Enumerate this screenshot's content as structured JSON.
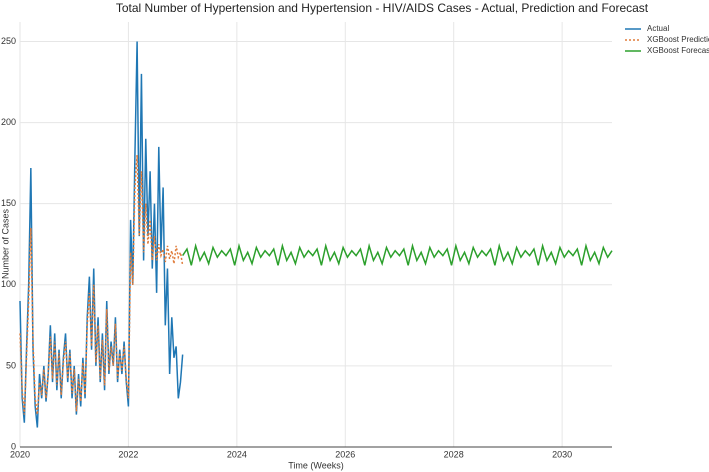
{
  "chart_data": {
    "type": "line",
    "title": "Total Number of Hypertension and Hypertension - HIV/AIDS Cases - Actual, Prediction and Forecast",
    "x_label": "Time (Weeks)",
    "y_label": "Number of Cases",
    "xlim": [
      2020,
      2030.92
    ],
    "xticks": [
      2020,
      2022,
      2024,
      2026,
      2028,
      2030
    ],
    "ylim": [
      0,
      262
    ],
    "yticks": [
      0,
      50,
      100,
      150,
      200,
      250
    ],
    "grid": true,
    "legend": "upper-right",
    "series": [
      {
        "name": "Actual",
        "color": "#1f77b4",
        "dash": false,
        "x": [
          2020,
          2020.04,
          2020.08,
          2020.12,
          2020.16,
          2020.2,
          2020.24,
          2020.28,
          2020.32,
          2020.36,
          2020.4,
          2020.44,
          2020.48,
          2020.52,
          2020.56,
          2020.6,
          2020.64,
          2020.68,
          2020.72,
          2020.76,
          2020.8,
          2020.84,
          2020.88,
          2020.92,
          2020.96,
          2021,
          2021.04,
          2021.08,
          2021.12,
          2021.16,
          2021.2,
          2021.24,
          2021.28,
          2021.32,
          2021.36,
          2021.4,
          2021.44,
          2021.48,
          2021.52,
          2021.56,
          2021.6,
          2021.64,
          2021.68,
          2021.72,
          2021.76,
          2021.8,
          2021.84,
          2021.88,
          2021.92,
          2021.96,
          2022,
          2022.04,
          2022.08,
          2022.12,
          2022.16,
          2022.2,
          2022.24,
          2022.28,
          2022.32,
          2022.36,
          2022.4,
          2022.44,
          2022.48,
          2022.52,
          2022.56,
          2022.6,
          2022.64,
          2022.68,
          2022.72,
          2022.76,
          2022.8,
          2022.84,
          2022.88,
          2022.92,
          2022.96,
          2023
        ],
        "values": [
          90,
          30,
          15,
          60,
          100,
          172,
          60,
          25,
          12,
          45,
          30,
          50,
          28,
          45,
          75,
          40,
          70,
          35,
          60,
          30,
          55,
          70,
          40,
          60,
          30,
          50,
          20,
          45,
          25,
          55,
          30,
          80,
          105,
          60,
          110,
          50,
          80,
          40,
          70,
          35,
          90,
          45,
          65,
          50,
          80,
          40,
          60,
          45,
          65,
          40,
          25,
          140,
          100,
          180,
          250,
          130,
          230,
          115,
          190,
          130,
          170,
          110,
          150,
          95,
          185,
          120,
          160,
          75,
          110,
          45,
          80,
          55,
          62,
          30,
          40,
          57
        ]
      },
      {
        "name": "XGBoost Prediction",
        "color": "#e07b39",
        "dash": true,
        "x": [
          2020,
          2020.04,
          2020.08,
          2020.12,
          2020.16,
          2020.2,
          2020.24,
          2020.28,
          2020.32,
          2020.36,
          2020.4,
          2020.44,
          2020.48,
          2020.52,
          2020.56,
          2020.6,
          2020.64,
          2020.68,
          2020.72,
          2020.76,
          2020.8,
          2020.84,
          2020.88,
          2020.92,
          2020.96,
          2021,
          2021.04,
          2021.08,
          2021.12,
          2021.16,
          2021.2,
          2021.24,
          2021.28,
          2021.32,
          2021.36,
          2021.4,
          2021.44,
          2021.48,
          2021.52,
          2021.56,
          2021.6,
          2021.64,
          2021.68,
          2021.72,
          2021.76,
          2021.8,
          2021.84,
          2021.88,
          2021.92,
          2021.96,
          2022,
          2022.04,
          2022.08,
          2022.12,
          2022.16,
          2022.2,
          2022.24,
          2022.28,
          2022.32,
          2022.36,
          2022.4,
          2022.44,
          2022.48,
          2022.52,
          2022.56,
          2022.6,
          2022.64,
          2022.68,
          2022.72,
          2022.76,
          2022.8,
          2022.84,
          2022.88,
          2022.92,
          2022.96,
          2023
        ],
        "values": [
          70,
          35,
          20,
          55,
          90,
          135,
          65,
          30,
          20,
          40,
          32,
          48,
          30,
          45,
          68,
          42,
          65,
          38,
          58,
          32,
          52,
          65,
          42,
          58,
          33,
          48,
          22,
          42,
          28,
          52,
          32,
          75,
          95,
          62,
          100,
          52,
          75,
          42,
          66,
          38,
          85,
          47,
          62,
          50,
          76,
          42,
          58,
          47,
          62,
          42,
          30,
          120,
          100,
          160,
          180,
          130,
          170,
          120,
          150,
          125,
          140,
          115,
          130,
          115,
          125,
          118,
          122,
          114,
          124,
          116,
          121,
          113,
          124,
          117,
          120,
          112
        ]
      },
      {
        "name": "XGBoost Forecast",
        "color": "#2ca02c",
        "dash": false,
        "x": [
          2023,
          2023.08,
          2023.16,
          2023.24,
          2023.32,
          2023.4,
          2023.48,
          2023.56,
          2023.64,
          2023.72,
          2023.8,
          2023.88,
          2023.96,
          2024.04,
          2024.12,
          2024.2,
          2024.28,
          2024.36,
          2024.44,
          2024.52,
          2024.6,
          2024.68,
          2024.76,
          2024.84,
          2024.92,
          2025,
          2025.08,
          2025.16,
          2025.24,
          2025.32,
          2025.4,
          2025.48,
          2025.56,
          2025.64,
          2025.72,
          2025.8,
          2025.88,
          2025.96,
          2026.04,
          2026.12,
          2026.2,
          2026.28,
          2026.36,
          2026.44,
          2026.52,
          2026.6,
          2026.68,
          2026.76,
          2026.84,
          2026.92,
          2027,
          2027.08,
          2027.16,
          2027.24,
          2027.32,
          2027.4,
          2027.48,
          2027.56,
          2027.64,
          2027.72,
          2027.8,
          2027.88,
          2027.96,
          2028.04,
          2028.12,
          2028.2,
          2028.28,
          2028.36,
          2028.44,
          2028.52,
          2028.6,
          2028.68,
          2028.76,
          2028.84,
          2028.92,
          2029,
          2029.08,
          2029.16,
          2029.24,
          2029.32,
          2029.4,
          2029.48,
          2029.56,
          2029.64,
          2029.72,
          2029.8,
          2029.88,
          2029.96,
          2030.04,
          2030.12,
          2030.2,
          2030.28,
          2030.36,
          2030.44,
          2030.52,
          2030.6,
          2030.68,
          2030.76,
          2030.84,
          2030.92
        ],
        "values": [
          118,
          122,
          112,
          124,
          115,
          120,
          113,
          123,
          117,
          121,
          118,
          122,
          112,
          124,
          115,
          120,
          113,
          123,
          117,
          121,
          118,
          122,
          112,
          124,
          115,
          120,
          113,
          123,
          117,
          121,
          118,
          122,
          112,
          124,
          115,
          120,
          113,
          123,
          117,
          121,
          118,
          122,
          112,
          124,
          115,
          120,
          113,
          123,
          117,
          121,
          118,
          122,
          112,
          124,
          115,
          120,
          113,
          123,
          117,
          121,
          118,
          122,
          112,
          124,
          115,
          120,
          113,
          123,
          117,
          121,
          118,
          122,
          112,
          124,
          115,
          120,
          113,
          123,
          117,
          121,
          118,
          122,
          112,
          124,
          115,
          120,
          113,
          123,
          117,
          121,
          118,
          122,
          112,
          124,
          115,
          120,
          113,
          123,
          117,
          121
        ]
      }
    ]
  }
}
